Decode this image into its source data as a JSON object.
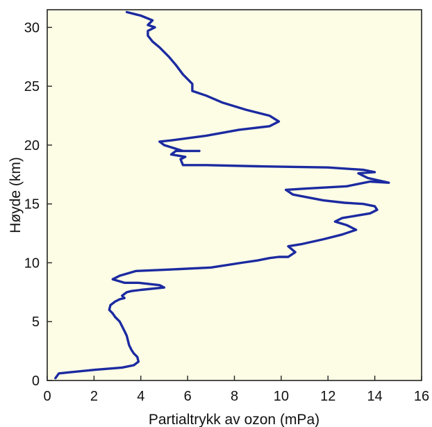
{
  "chart_data": {
    "type": "line",
    "title": "",
    "xlabel": "Partialtrykk av ozon (mPa)",
    "ylabel": "Høyde (km)",
    "xlim": [
      0,
      16
    ],
    "ylim": [
      0,
      31.5
    ],
    "x_ticks": [
      "0",
      "2",
      "4",
      "6",
      "8",
      "10",
      "12",
      "14",
      "16"
    ],
    "y_ticks": [
      "0",
      "5",
      "10",
      "15",
      "20",
      "25",
      "30"
    ],
    "grid": false,
    "legend": "none",
    "colors": {
      "background": "#fdfde6",
      "line": "#1b2aa0",
      "frame": "#222222"
    },
    "series": [
      {
        "x": [
          0.35,
          0.5,
          1.0,
          2.0,
          3.2,
          3.7,
          3.9,
          3.85,
          3.7,
          3.6,
          3.5,
          3.45,
          3.4,
          3.3,
          3.2,
          3.1,
          2.9,
          2.8,
          2.65,
          2.7,
          2.9,
          3.1,
          3.3,
          3.2,
          3.4,
          3.6,
          4.0,
          5.0,
          4.8,
          3.9,
          3.3,
          2.8,
          3.1,
          3.8,
          5.0,
          7.0,
          8.3,
          9.0,
          9.5,
          9.9,
          10.3,
          10.6,
          10.3,
          10.9,
          11.8,
          12.6,
          13.2,
          12.8,
          12.3,
          12.6,
          13.2,
          13.8,
          14.1,
          14.0,
          13.5,
          12.7,
          11.8,
          10.5,
          10.2,
          11.0,
          12.8,
          13.8,
          14.6,
          13.7,
          13.3,
          14.0,
          13.5,
          12.0,
          9.0,
          6.8,
          5.8,
          5.7,
          5.9,
          5.3,
          5.5,
          6.5,
          5.8,
          5.0,
          4.8,
          5.3,
          6.8,
          8.2,
          9.5,
          9.9,
          9.5,
          8.5,
          7.5,
          6.8,
          6.2,
          6.2,
          5.8,
          5.5,
          5.2,
          4.8,
          4.5,
          4.3,
          4.3,
          4.6,
          4.3,
          4.5,
          4.0,
          3.8,
          3.4
        ],
        "y": [
          0.2,
          0.6,
          0.7,
          0.9,
          1.1,
          1.3,
          1.6,
          2.0,
          2.3,
          2.6,
          3.0,
          3.4,
          3.8,
          4.2,
          4.6,
          5.0,
          5.4,
          5.7,
          6.0,
          6.4,
          6.7,
          6.9,
          7.0,
          7.2,
          7.5,
          7.6,
          7.7,
          7.9,
          8.1,
          8.3,
          8.3,
          8.6,
          8.9,
          9.3,
          9.4,
          9.6,
          10.0,
          10.2,
          10.4,
          10.5,
          10.5,
          10.9,
          11.4,
          11.6,
          12.0,
          12.4,
          12.8,
          13.2,
          13.5,
          13.8,
          14.0,
          14.2,
          14.5,
          14.8,
          15.0,
          15.1,
          15.3,
          15.8,
          16.2,
          16.3,
          16.5,
          16.9,
          16.8,
          17.2,
          17.6,
          17.7,
          17.9,
          18.1,
          18.2,
          18.3,
          18.3,
          18.8,
          19.0,
          19.2,
          19.5,
          19.5,
          19.5,
          20.0,
          20.3,
          20.4,
          20.8,
          21.3,
          21.6,
          22.0,
          22.5,
          23.0,
          23.6,
          24.2,
          24.6,
          25.2,
          26.0,
          26.8,
          27.5,
          28.3,
          28.8,
          29.3,
          29.7,
          30.0,
          30.2,
          30.6,
          31.0,
          31.1,
          31.3
        ]
      }
    ]
  }
}
